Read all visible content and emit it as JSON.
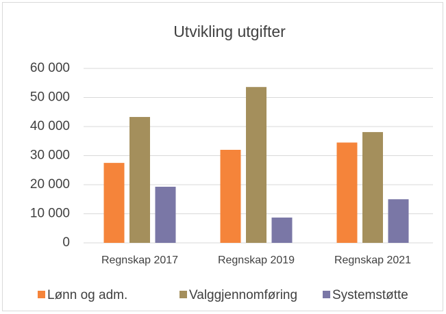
{
  "chart_data": {
    "type": "bar",
    "title": "Utvikling utgifter",
    "categories": [
      "Regnskap 2017",
      "Regnskap 2019",
      "Regnskap 2021"
    ],
    "series": [
      {
        "name": "Lønn og adm.",
        "color": "#f5843a",
        "values": [
          27500,
          32000,
          34500
        ]
      },
      {
        "name": "Valggjennomføring",
        "color": "#a48f5c",
        "values": [
          43300,
          53600,
          38100
        ]
      },
      {
        "name": "Systemstøtte",
        "color": "#7a77a6",
        "values": [
          19300,
          8700,
          15000
        ]
      }
    ],
    "ylim": [
      0,
      60000
    ],
    "yticks": [
      0,
      {
        "value": 10000,
        "label": "10 000"
      },
      {
        "value": 20000,
        "label": "20 000"
      },
      {
        "value": 30000,
        "label": "30 000"
      },
      {
        "value": 40000,
        "label": "40 000"
      },
      {
        "value": 50000,
        "label": "50 000"
      },
      {
        "value": 60000,
        "label": "60 000"
      }
    ],
    "grid": true,
    "legend": "bottom"
  }
}
